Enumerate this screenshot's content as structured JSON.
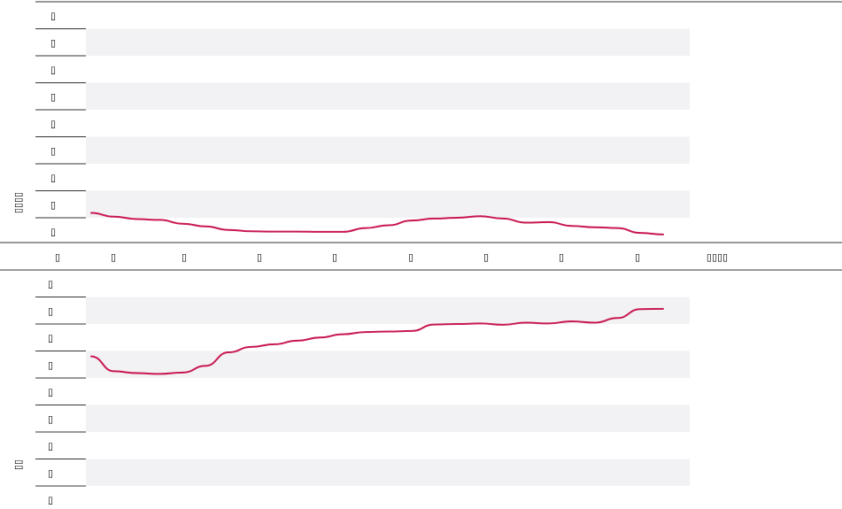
{
  "chart_data": [
    {
      "type": "line",
      "title": "",
      "ylabel": "▯▯▯▯",
      "yticks": [
        "▯",
        "▯",
        "▯",
        "▯",
        "▯",
        "▯",
        "▯",
        "▯",
        "▯"
      ],
      "xlabel": "▯▯▯▯",
      "xticks": [
        "▯",
        "▯",
        "▯",
        "▯",
        "▯",
        "▯",
        "▯",
        "▯",
        "▯"
      ],
      "xlim": [
        0,
        100
      ],
      "ylim": [
        0,
        9
      ],
      "grid": "alternating horizontal bands",
      "series": [
        {
          "color": "#c8174f",
          "x": [
            0,
            4,
            8,
            12,
            16,
            20,
            24,
            28,
            32,
            36,
            40,
            44,
            48,
            52,
            56,
            60,
            64,
            68,
            72,
            76,
            80,
            84,
            88,
            92,
            96,
            100
          ],
          "y": [
            1.18,
            1.04,
            0.95,
            0.92,
            0.78,
            0.68,
            0.55,
            0.5,
            0.49,
            0.49,
            0.48,
            0.48,
            0.62,
            0.72,
            0.9,
            0.97,
            1.0,
            1.06,
            0.97,
            0.82,
            0.84,
            0.7,
            0.65,
            0.62,
            0.44,
            0.38
          ]
        }
      ]
    },
    {
      "type": "line",
      "title": "",
      "ylabel": "▯▯",
      "yticks": [
        "▯",
        "▯",
        "▯",
        "▯",
        "▯",
        "▯",
        "▯",
        "▯",
        "▯"
      ],
      "xlim": [
        0,
        100
      ],
      "ylim": [
        0,
        9
      ],
      "grid": "alternating horizontal bands",
      "series": [
        {
          "color": "#c8174f",
          "x": [
            0,
            4,
            8,
            12,
            16,
            20,
            24,
            28,
            32,
            36,
            40,
            44,
            48,
            52,
            56,
            60,
            64,
            68,
            72,
            76,
            80,
            84,
            88,
            92,
            96,
            100
          ],
          "y": [
            5.8,
            5.25,
            5.18,
            5.15,
            5.2,
            5.45,
            5.95,
            6.15,
            6.25,
            6.38,
            6.5,
            6.62,
            6.7,
            6.72,
            6.74,
            6.98,
            7.0,
            7.02,
            6.97,
            7.05,
            7.02,
            7.1,
            7.05,
            7.22,
            7.55,
            7.56
          ]
        }
      ]
    }
  ]
}
